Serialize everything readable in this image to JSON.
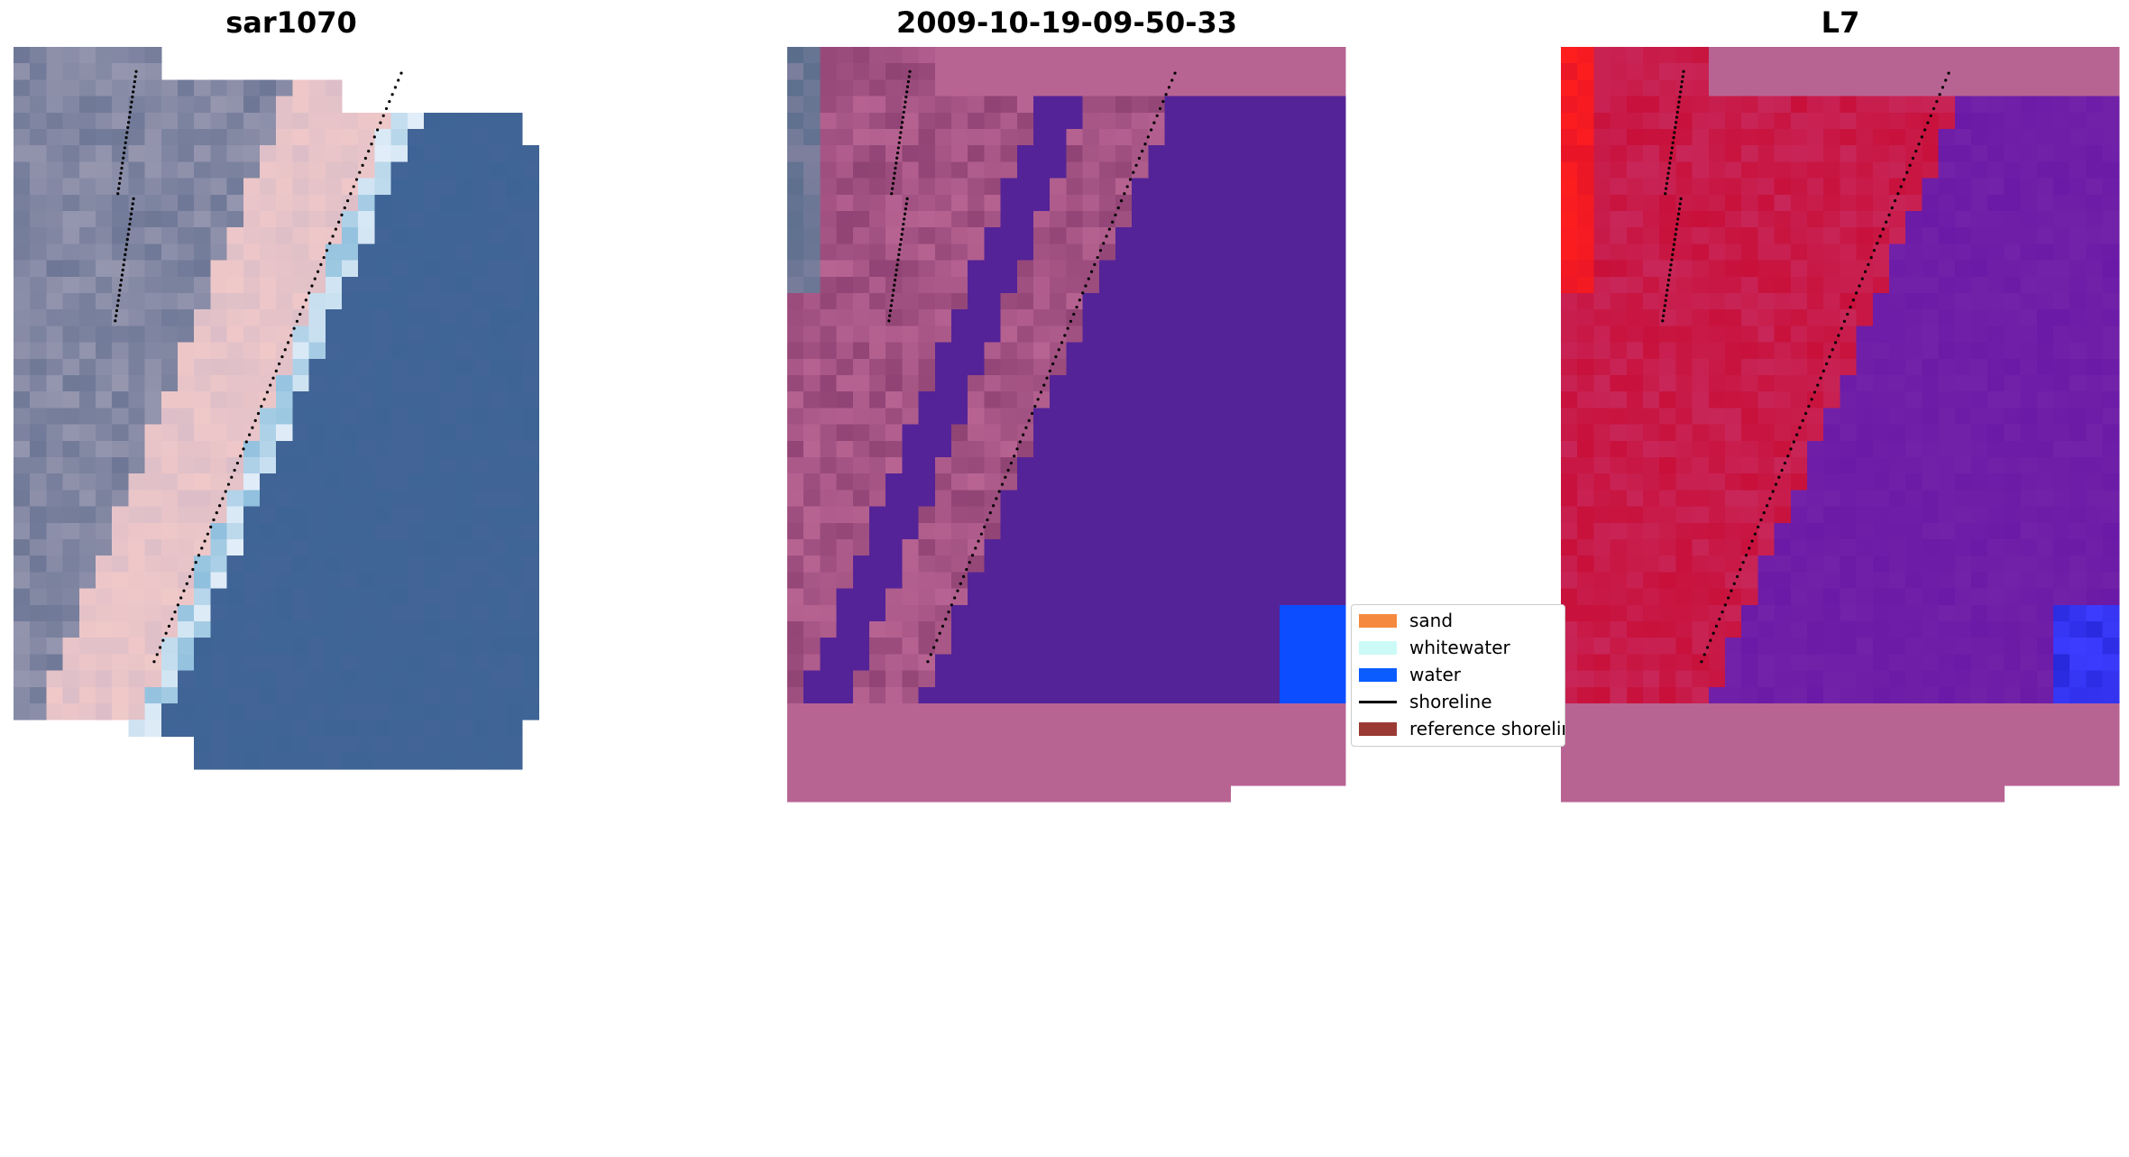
{
  "panels": [
    {
      "title": "sar1070",
      "kind": "rgb"
    },
    {
      "title": "2009-10-19-09-50-33",
      "kind": "classified"
    },
    {
      "title": "L7",
      "kind": "mndwi"
    }
  ],
  "legend": {
    "items": [
      {
        "label": "sand",
        "color": "#f58a3f",
        "symbol": "patch"
      },
      {
        "label": "whitewater",
        "color": "#ccfbf7",
        "symbol": "patch"
      },
      {
        "label": "water",
        "color": "#0a5cff",
        "symbol": "patch"
      },
      {
        "label": "shoreline",
        "color": "#000000",
        "symbol": "line"
      },
      {
        "label": "reference shoreline",
        "color": "#9b3a34",
        "symbol": "patch"
      }
    ]
  },
  "colors": {
    "nodata": "#b86493",
    "land_class": "#542397",
    "water_class": "#0b4dff",
    "rgb_water": "#3e6496",
    "rgb_sand": "#f0c8c8",
    "index_land": "#c8103a",
    "index_water": "#6a1aa6"
  }
}
